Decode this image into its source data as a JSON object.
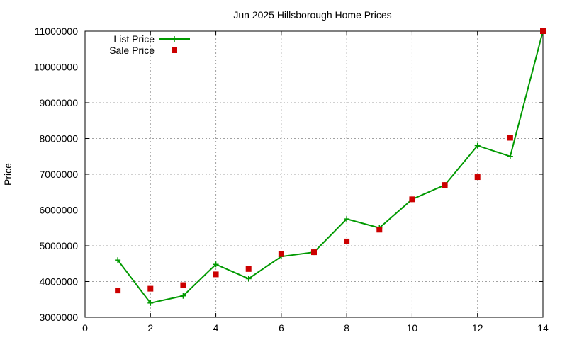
{
  "chart_data": {
    "type": "line",
    "title": "Jun 2025 Hillsborough Home Prices",
    "xlabel": "",
    "ylabel": "Price",
    "xlim": [
      0,
      14
    ],
    "ylim": [
      3000000,
      11000000
    ],
    "xticks": [
      "0",
      "2",
      "4",
      "6",
      "8",
      "10",
      "12",
      "14"
    ],
    "yticks": [
      "3000000",
      "4000000",
      "5000000",
      "6000000",
      "7000000",
      "8000000",
      "9000000",
      "10000000",
      "11000000"
    ],
    "grid": true,
    "legend_position": "top-left",
    "series": [
      {
        "name": "List Price",
        "style": "line+plus",
        "color": "#009900",
        "x": [
          1,
          2,
          3,
          4,
          5,
          6,
          7,
          8,
          9,
          10,
          11,
          12,
          13,
          14
        ],
        "y": [
          4600000,
          3400000,
          3600000,
          4480000,
          4080000,
          4700000,
          4820000,
          5750000,
          5500000,
          6300000,
          6700000,
          7800000,
          7500000,
          11000000
        ]
      },
      {
        "name": "Sale Price",
        "style": "square-points",
        "color": "#cc0000",
        "x": [
          1,
          2,
          3,
          4,
          5,
          6,
          7,
          8,
          9,
          10,
          11,
          12,
          13,
          14
        ],
        "y": [
          3750000,
          3800000,
          3900000,
          4200000,
          4350000,
          4770000,
          4820000,
          5120000,
          5450000,
          6300000,
          6700000,
          6920000,
          8020000,
          11000000
        ]
      }
    ]
  }
}
